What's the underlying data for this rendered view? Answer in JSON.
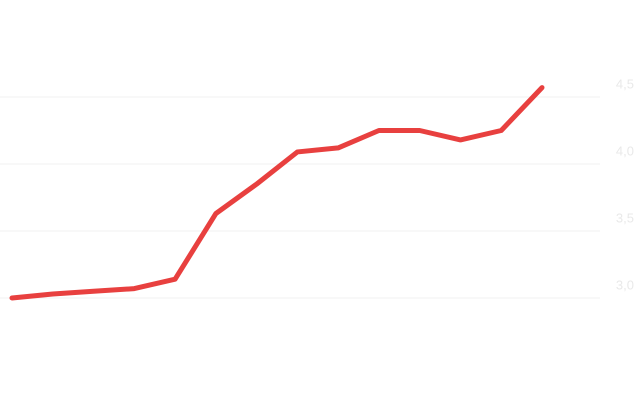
{
  "chart_data": {
    "type": "line",
    "categories": [
      null,
      null,
      null,
      null,
      null,
      null,
      null,
      null,
      null,
      null,
      null,
      null,
      null,
      null
    ],
    "values": [
      3.0,
      3.03,
      3.05,
      3.07,
      3.14,
      3.63,
      3.85,
      4.09,
      4.12,
      4.25,
      4.25,
      4.18,
      4.25,
      4.57
    ],
    "color": "#e8403f",
    "ylim": [
      2.5,
      5.0
    ],
    "yticks": [
      {
        "value": 3.0,
        "label": "3,0"
      },
      {
        "value": 3.5,
        "label": "3,5"
      },
      {
        "value": 4.0,
        "label": "4,0"
      },
      {
        "value": 4.5,
        "label": "4,5"
      }
    ],
    "grid": true
  }
}
